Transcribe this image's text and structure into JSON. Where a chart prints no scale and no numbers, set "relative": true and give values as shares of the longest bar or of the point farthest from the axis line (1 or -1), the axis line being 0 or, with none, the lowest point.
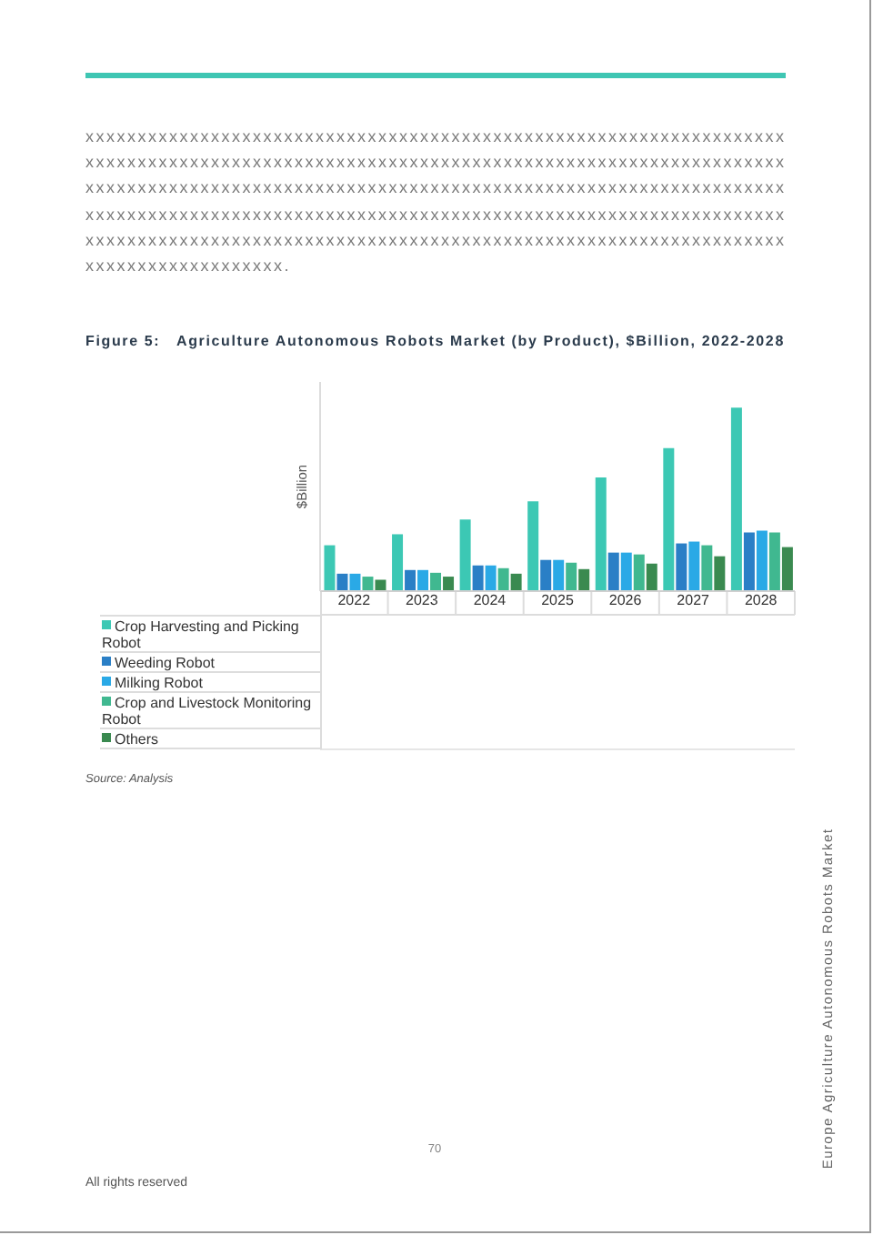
{
  "chart_data": {
    "type": "bar",
    "title": "Figure 5:   Agriculture Autonomous Robots Market (by Product), $Billion, 2022-2028",
    "ylabel": "$Billion",
    "relative": true,
    "legend": "bottom left",
    "categories": [
      "2022",
      "2023",
      "2024",
      "2025",
      "2026",
      "2027",
      "2028"
    ],
    "series": [
      {
        "name": "Crop Harvesting and Picking Robot",
        "color": "#3cc8b4",
        "values": [
          0.25,
          0.31,
          0.39,
          0.49,
          0.62,
          0.78,
          1
        ]
      },
      {
        "name": "Weeding Robot",
        "color": "#2a7fc6",
        "values": [
          0.095,
          0.115,
          0.14,
          0.17,
          0.21,
          0.26,
          0.32
        ]
      },
      {
        "name": "Milking Robot",
        "color": "#2aa9e6",
        "values": [
          0.095,
          0.115,
          0.14,
          0.17,
          0.21,
          0.27,
          0.33
        ]
      },
      {
        "name": "Crop and Livestock Monitoring Robot",
        "color": "#40b890",
        "values": [
          0.079,
          0.1,
          0.125,
          0.155,
          0.2,
          0.25,
          0.32
        ]
      },
      {
        "name": "Others",
        "color": "#3a8a50",
        "values": [
          0.062,
          0.079,
          0.095,
          0.12,
          0.15,
          0.19,
          0.24
        ]
      }
    ],
    "annotations": [
      "xxxxxxxxxxxxxxxxxxxxxxxxxxxxxxxxxxxxxxxxxxxxxxxxxxxxxxxxxxxxxxxxxxxxxxxxxxxxxxxxxxxxxxxxxxxxxxxxxxxxxxxxxxxxxxxxxxxxxxxxxxxxxxxxxxxxxxxxxxxxxxxxxxxxxxxxxxxxxxxxxxxxxxxxxxxxxxxxxxxxxxxxxxxxxxxxxxxxxxxxxxxxxxxxxxxxxxxxxxxxxxxxxxxxxxxxxxxxxxxxxxxxxxxxxxxxxxxxxxxxxxxxxxxxxxxxxxxxxxxxxxxxxxxxxxxxxxxxxxxxxxxxxxxxxxxxxxxxxxxxxxxxxxxxxxxxxxxxxxxxxxxxxxxxxxxxxx.",
      "Source: Analysis",
      "Europe Agriculture Autonomous Robots Market",
      "70",
      "All rights reserved"
    ]
  }
}
